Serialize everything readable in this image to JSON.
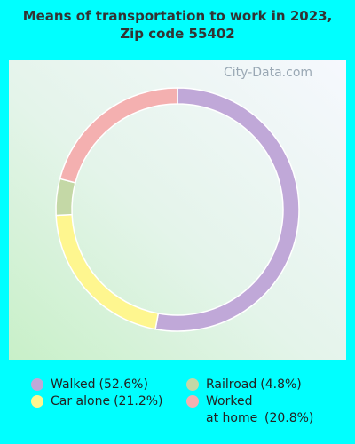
{
  "chart_data": {
    "type": "donut",
    "title": "Means of transportation to work in 2023, Zip code 55402",
    "watermark": "City-Data.com",
    "categories": [
      "Walked",
      "Car alone",
      "Railroad",
      "Worked at home"
    ],
    "values": [
      52.6,
      21.2,
      4.8,
      20.8
    ],
    "value_labels": [
      "(52.6%)",
      "(21.2%)",
      "(4.8%)",
      "(20.8%)"
    ],
    "colors": [
      "#c0a8d8",
      "#fef68f",
      "#c4d8a6",
      "#f4b0b0"
    ]
  }
}
